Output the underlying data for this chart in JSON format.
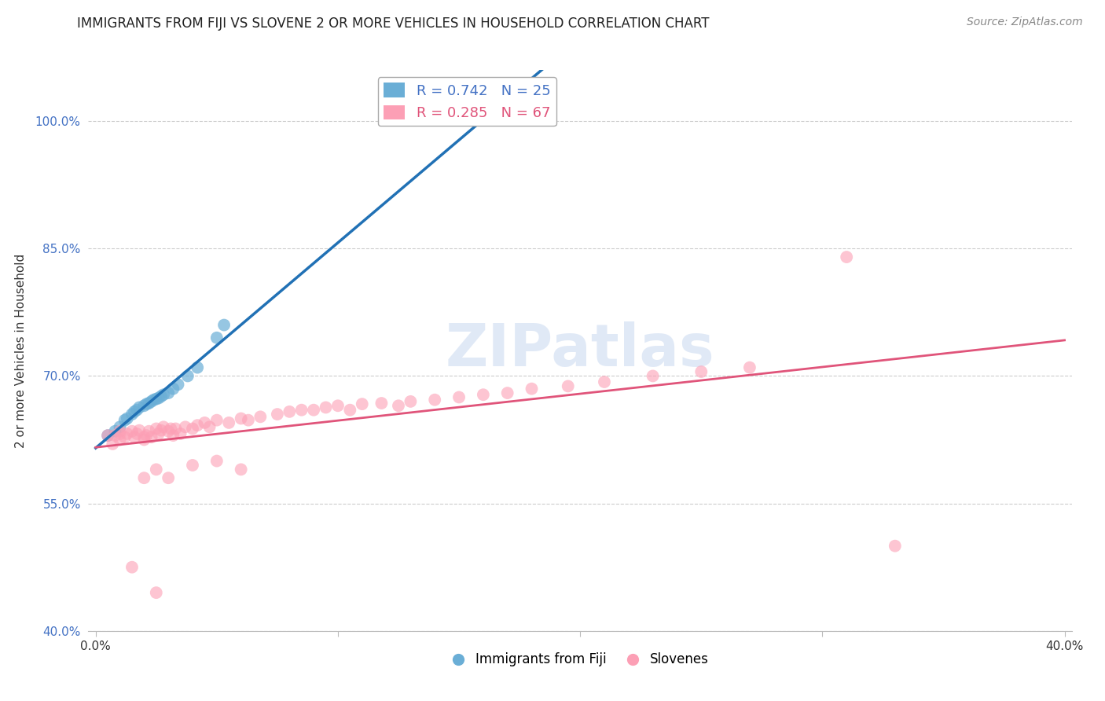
{
  "title": "IMMIGRANTS FROM FIJI VS SLOVENE 2 OR MORE VEHICLES IN HOUSEHOLD CORRELATION CHART",
  "source_text": "Source: ZipAtlas.com",
  "ylabel": "2 or more Vehicles in Household",
  "xlim": [
    -0.003,
    0.403
  ],
  "ylim": [
    0.4,
    1.06
  ],
  "xticks": [
    0.0,
    0.1,
    0.2,
    0.3,
    0.4
  ],
  "xtick_labels": [
    "0.0%",
    "",
    "",
    "",
    "40.0%"
  ],
  "ytick_positions": [
    0.4,
    0.55,
    0.7,
    0.85,
    1.0
  ],
  "ytick_labels": [
    "40.0%",
    "55.0%",
    "70.0%",
    "85.0%",
    "100.0%"
  ],
  "fiji_R": 0.742,
  "fiji_N": 25,
  "slovene_R": 0.285,
  "slovene_N": 67,
  "fiji_color": "#6aaed6",
  "fiji_line_color": "#2171b5",
  "slovene_color": "#fc9fb5",
  "slovene_line_color": "#e0547a",
  "watermark_text": "ZIPatlas",
  "background_color": "#ffffff",
  "grid_color": "#cccccc",
  "fiji_legend_label": "Immigrants from Fiji",
  "slovene_legend_label": "Slovenes",
  "fiji_x": [
    0.005,
    0.008,
    0.01,
    0.012,
    0.013,
    0.015,
    0.016,
    0.017,
    0.018,
    0.02,
    0.021,
    0.022,
    0.023,
    0.024,
    0.025,
    0.026,
    0.027,
    0.028,
    0.03,
    0.032,
    0.034,
    0.038,
    0.042,
    0.05,
    0.053
  ],
  "fiji_y": [
    0.63,
    0.635,
    0.64,
    0.648,
    0.65,
    0.655,
    0.658,
    0.66,
    0.663,
    0.665,
    0.667,
    0.668,
    0.67,
    0.672,
    0.673,
    0.674,
    0.676,
    0.678,
    0.68,
    0.685,
    0.69,
    0.7,
    0.71,
    0.745,
    0.76
  ],
  "slovene_x": [
    0.005,
    0.007,
    0.008,
    0.01,
    0.01,
    0.012,
    0.013,
    0.015,
    0.016,
    0.017,
    0.018,
    0.02,
    0.021,
    0.022,
    0.023,
    0.025,
    0.026,
    0.027,
    0.028,
    0.03,
    0.031,
    0.032,
    0.033,
    0.035,
    0.037,
    0.04,
    0.042,
    0.045,
    0.047,
    0.05,
    0.055,
    0.06,
    0.063,
    0.068,
    0.075,
    0.08,
    0.085,
    0.09,
    0.095,
    0.1,
    0.105,
    0.11,
    0.118,
    0.125,
    0.13,
    0.14,
    0.15,
    0.16,
    0.17,
    0.18,
    0.195,
    0.21,
    0.23,
    0.25,
    0.27,
    0.02,
    0.025,
    0.03,
    0.04,
    0.05,
    0.06,
    0.31,
    0.33,
    0.01,
    0.015,
    0.02,
    0.025
  ],
  "slovene_y": [
    0.63,
    0.62,
    0.63,
    0.625,
    0.635,
    0.628,
    0.632,
    0.635,
    0.628,
    0.632,
    0.636,
    0.625,
    0.63,
    0.635,
    0.628,
    0.638,
    0.632,
    0.636,
    0.64,
    0.635,
    0.638,
    0.63,
    0.638,
    0.632,
    0.64,
    0.638,
    0.642,
    0.645,
    0.64,
    0.648,
    0.645,
    0.65,
    0.648,
    0.652,
    0.655,
    0.658,
    0.66,
    0.66,
    0.663,
    0.665,
    0.66,
    0.667,
    0.668,
    0.665,
    0.67,
    0.672,
    0.675,
    0.678,
    0.68,
    0.685,
    0.688,
    0.693,
    0.7,
    0.705,
    0.71,
    0.58,
    0.59,
    0.58,
    0.595,
    0.6,
    0.59,
    0.84,
    0.5,
    0.632,
    0.475,
    0.628,
    0.445
  ],
  "title_fontsize": 12,
  "label_fontsize": 11,
  "tick_fontsize": 11,
  "legend_fontsize": 13
}
